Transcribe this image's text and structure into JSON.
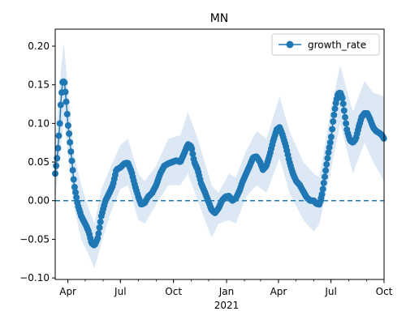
{
  "chart_data": {
    "type": "line",
    "title": "MN",
    "xlabel": "",
    "ylabel": "",
    "x_start": "2020-03-10",
    "x_end": "2021-10-01",
    "xlim": [
      "2020-03-10",
      "2021-10-01"
    ],
    "ylim": [
      -0.102,
      0.222
    ],
    "x_ticks": [
      {
        "date": "2020-04-01",
        "label": "Apr"
      },
      {
        "date": "2020-07-01",
        "label": "Jul"
      },
      {
        "date": "2020-10-01",
        "label": "Oct"
      },
      {
        "date": "2021-01-01",
        "label": "Jan"
      },
      {
        "date": "2021-04-01",
        "label": "Apr"
      },
      {
        "date": "2021-07-01",
        "label": "Jul"
      },
      {
        "date": "2021-10-01",
        "label": "Oct"
      }
    ],
    "x_year_label": "2021",
    "y_ticks": [
      -0.1,
      -0.05,
      0.0,
      0.05,
      0.1,
      0.15,
      0.2
    ],
    "y_tick_labels": [
      "−0.10",
      "−0.05",
      "0.00",
      "0.05",
      "0.10",
      "0.15",
      "0.20"
    ],
    "legend": {
      "position": "top-right",
      "entries": [
        "growth_rate"
      ]
    },
    "reference_line": {
      "y": 0.0,
      "style": "dashed"
    },
    "colors": {
      "series": "#1f77b4",
      "band": "#dce9f5"
    },
    "series": [
      {
        "name": "growth_rate",
        "points": [
          [
            "2020-03-10",
            0.035
          ],
          [
            "2020-03-14",
            0.06
          ],
          [
            "2020-03-18",
            0.1
          ],
          [
            "2020-03-20",
            0.13
          ],
          [
            "2020-03-23",
            0.155
          ],
          [
            "2020-03-26",
            0.153
          ],
          [
            "2020-03-29",
            0.13
          ],
          [
            "2020-04-01",
            0.1
          ],
          [
            "2020-04-04",
            0.08
          ],
          [
            "2020-04-08",
            0.05
          ],
          [
            "2020-04-12",
            0.02
          ],
          [
            "2020-04-18",
            -0.005
          ],
          [
            "2020-04-24",
            -0.02
          ],
          [
            "2020-05-01",
            -0.03
          ],
          [
            "2020-05-07",
            -0.04
          ],
          [
            "2020-05-12",
            -0.055
          ],
          [
            "2020-05-17",
            -0.058
          ],
          [
            "2020-05-23",
            -0.048
          ],
          [
            "2020-05-29",
            -0.02
          ],
          [
            "2020-06-05",
            0.0
          ],
          [
            "2020-06-12",
            0.01
          ],
          [
            "2020-06-18",
            0.02
          ],
          [
            "2020-06-24",
            0.04
          ],
          [
            "2020-07-01",
            0.043
          ],
          [
            "2020-07-08",
            0.048
          ],
          [
            "2020-07-14",
            0.049
          ],
          [
            "2020-07-20",
            0.038
          ],
          [
            "2020-07-26",
            0.02
          ],
          [
            "2020-08-01",
            0.005
          ],
          [
            "2020-08-06",
            -0.005
          ],
          [
            "2020-08-12",
            -0.003
          ],
          [
            "2020-08-18",
            0.005
          ],
          [
            "2020-08-25",
            0.01
          ],
          [
            "2020-09-01",
            0.02
          ],
          [
            "2020-09-08",
            0.035
          ],
          [
            "2020-09-15",
            0.045
          ],
          [
            "2020-09-22",
            0.048
          ],
          [
            "2020-09-29",
            0.05
          ],
          [
            "2020-10-06",
            0.052
          ],
          [
            "2020-10-13",
            0.05
          ],
          [
            "2020-10-20",
            0.062
          ],
          [
            "2020-10-26",
            0.073
          ],
          [
            "2020-11-01",
            0.07
          ],
          [
            "2020-11-06",
            0.05
          ],
          [
            "2020-11-12",
            0.04
          ],
          [
            "2020-11-18",
            0.022
          ],
          [
            "2020-11-25",
            0.01
          ],
          [
            "2020-12-01",
            -0.002
          ],
          [
            "2020-12-06",
            -0.012
          ],
          [
            "2020-12-12",
            -0.016
          ],
          [
            "2020-12-18",
            -0.01
          ],
          [
            "2020-12-24",
            0.0
          ],
          [
            "2020-12-30",
            0.005
          ],
          [
            "2021-01-05",
            0.006
          ],
          [
            "2021-01-11",
            0.0
          ],
          [
            "2021-01-17",
            0.003
          ],
          [
            "2021-01-23",
            0.012
          ],
          [
            "2021-01-29",
            0.025
          ],
          [
            "2021-02-04",
            0.035
          ],
          [
            "2021-02-10",
            0.045
          ],
          [
            "2021-02-16",
            0.056
          ],
          [
            "2021-02-22",
            0.057
          ],
          [
            "2021-02-28",
            0.05
          ],
          [
            "2021-03-05",
            0.04
          ],
          [
            "2021-03-11",
            0.045
          ],
          [
            "2021-03-17",
            0.06
          ],
          [
            "2021-03-23",
            0.078
          ],
          [
            "2021-03-29",
            0.092
          ],
          [
            "2021-04-03",
            0.095
          ],
          [
            "2021-04-08",
            0.085
          ],
          [
            "2021-04-14",
            0.07
          ],
          [
            "2021-04-20",
            0.05
          ],
          [
            "2021-04-26",
            0.035
          ],
          [
            "2021-05-02",
            0.025
          ],
          [
            "2021-05-08",
            0.02
          ],
          [
            "2021-05-14",
            0.012
          ],
          [
            "2021-05-20",
            0.004
          ],
          [
            "2021-05-26",
            0.0
          ],
          [
            "2021-06-01",
            0.0
          ],
          [
            "2021-06-06",
            -0.004
          ],
          [
            "2021-06-11",
            -0.005
          ],
          [
            "2021-06-16",
            0.01
          ],
          [
            "2021-06-21",
            0.035
          ],
          [
            "2021-06-26",
            0.06
          ],
          [
            "2021-07-01",
            0.08
          ],
          [
            "2021-07-05",
            0.105
          ],
          [
            "2021-07-09",
            0.125
          ],
          [
            "2021-07-13",
            0.138
          ],
          [
            "2021-07-17",
            0.14
          ],
          [
            "2021-07-21",
            0.132
          ],
          [
            "2021-07-25",
            0.11
          ],
          [
            "2021-07-29",
            0.09
          ],
          [
            "2021-08-03",
            0.078
          ],
          [
            "2021-08-08",
            0.075
          ],
          [
            "2021-08-13",
            0.08
          ],
          [
            "2021-08-18",
            0.095
          ],
          [
            "2021-08-23",
            0.108
          ],
          [
            "2021-08-28",
            0.113
          ],
          [
            "2021-09-02",
            0.113
          ],
          [
            "2021-09-07",
            0.105
          ],
          [
            "2021-09-12",
            0.095
          ],
          [
            "2021-09-17",
            0.09
          ],
          [
            "2021-09-22",
            0.088
          ],
          [
            "2021-09-27",
            0.085
          ],
          [
            "2021-10-01",
            0.08
          ]
        ],
        "band_low": [
          [
            "2020-03-10",
            0.0
          ],
          [
            "2020-03-20",
            0.07
          ],
          [
            "2020-03-25",
            0.11
          ],
          [
            "2020-04-01",
            0.06
          ],
          [
            "2020-04-12",
            -0.01
          ],
          [
            "2020-04-24",
            -0.05
          ],
          [
            "2020-05-07",
            -0.07
          ],
          [
            "2020-05-17",
            -0.088
          ],
          [
            "2020-05-29",
            -0.055
          ],
          [
            "2020-06-12",
            -0.02
          ],
          [
            "2020-07-01",
            0.015
          ],
          [
            "2020-07-14",
            0.02
          ],
          [
            "2020-08-01",
            -0.025
          ],
          [
            "2020-08-12",
            -0.03
          ],
          [
            "2020-09-01",
            -0.005
          ],
          [
            "2020-09-22",
            0.02
          ],
          [
            "2020-10-13",
            0.02
          ],
          [
            "2020-10-26",
            0.035
          ],
          [
            "2020-11-12",
            0.0
          ],
          [
            "2020-12-06",
            -0.048
          ],
          [
            "2020-12-18",
            -0.03
          ],
          [
            "2021-01-05",
            -0.025
          ],
          [
            "2021-01-17",
            -0.03
          ],
          [
            "2021-02-04",
            0.005
          ],
          [
            "2021-02-22",
            0.02
          ],
          [
            "2021-03-11",
            0.01
          ],
          [
            "2021-04-03",
            0.055
          ],
          [
            "2021-04-20",
            0.01
          ],
          [
            "2021-05-14",
            -0.025
          ],
          [
            "2021-06-01",
            -0.04
          ],
          [
            "2021-06-11",
            -0.03
          ],
          [
            "2021-07-01",
            0.04
          ],
          [
            "2021-07-17",
            0.1
          ],
          [
            "2021-08-08",
            0.035
          ],
          [
            "2021-08-28",
            0.075
          ],
          [
            "2021-09-12",
            0.05
          ],
          [
            "2021-10-01",
            0.025
          ]
        ],
        "band_high": [
          [
            "2020-03-10",
            0.07
          ],
          [
            "2020-03-20",
            0.17
          ],
          [
            "2020-03-25",
            0.205
          ],
          [
            "2020-04-01",
            0.145
          ],
          [
            "2020-04-12",
            0.06
          ],
          [
            "2020-04-24",
            0.02
          ],
          [
            "2020-05-07",
            -0.01
          ],
          [
            "2020-05-17",
            -0.03
          ],
          [
            "2020-05-29",
            0.015
          ],
          [
            "2020-06-12",
            0.04
          ],
          [
            "2020-07-01",
            0.072
          ],
          [
            "2020-07-14",
            0.08
          ],
          [
            "2020-08-01",
            0.035
          ],
          [
            "2020-08-12",
            0.025
          ],
          [
            "2020-09-01",
            0.045
          ],
          [
            "2020-09-22",
            0.08
          ],
          [
            "2020-10-13",
            0.085
          ],
          [
            "2020-10-26",
            0.115
          ],
          [
            "2020-11-12",
            0.08
          ],
          [
            "2020-12-06",
            0.02
          ],
          [
            "2020-12-18",
            0.01
          ],
          [
            "2021-01-05",
            0.035
          ],
          [
            "2021-01-17",
            0.03
          ],
          [
            "2021-02-04",
            0.065
          ],
          [
            "2021-02-22",
            0.09
          ],
          [
            "2021-03-11",
            0.08
          ],
          [
            "2021-04-03",
            0.135
          ],
          [
            "2021-04-20",
            0.09
          ],
          [
            "2021-05-14",
            0.05
          ],
          [
            "2021-06-01",
            0.035
          ],
          [
            "2021-06-11",
            0.03
          ],
          [
            "2021-07-01",
            0.12
          ],
          [
            "2021-07-17",
            0.175
          ],
          [
            "2021-08-08",
            0.115
          ],
          [
            "2021-08-28",
            0.155
          ],
          [
            "2021-09-12",
            0.14
          ],
          [
            "2021-10-01",
            0.135
          ]
        ]
      }
    ]
  }
}
